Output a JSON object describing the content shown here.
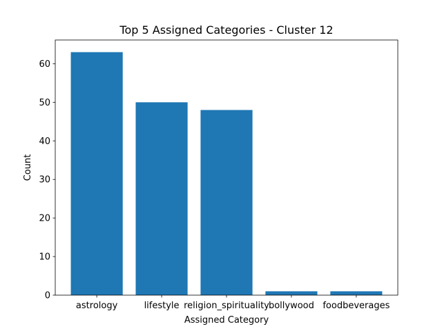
{
  "chart_data": {
    "type": "bar",
    "title": "Top 5 Assigned Categories - Cluster 12",
    "xlabel": "Assigned Category",
    "ylabel": "Count",
    "categories": [
      "astrology",
      "lifestyle",
      "religion_spirituality",
      "bollywood",
      "foodbeverages"
    ],
    "values": [
      63,
      50,
      48,
      1,
      1
    ],
    "ylim": [
      0,
      66.15
    ],
    "yticks": [
      0,
      10,
      20,
      30,
      40,
      50,
      60
    ],
    "grid": false,
    "legend": "none",
    "bar_color": "#1f77b4"
  }
}
